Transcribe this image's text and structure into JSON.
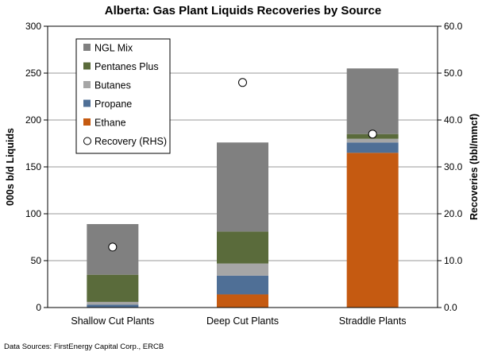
{
  "chart_data": {
    "type": "bar",
    "stacked": true,
    "title": "Alberta: Gas Plant Liquids Recoveries by Source",
    "ylabel": "000s b/d Liquids",
    "y2label": "Recoveries (bbl/mmcf)",
    "ylim": [
      0,
      300
    ],
    "y2lim": [
      0,
      60
    ],
    "yticks": [
      "0",
      "50",
      "100",
      "150",
      "200",
      "250",
      "300"
    ],
    "y2ticks": [
      "0.0",
      "10.0",
      "20.0",
      "30.0",
      "40.0",
      "50.0",
      "60.0"
    ],
    "grid": true,
    "legend_position": "top-left",
    "categories": [
      "Shallow Cut Plants",
      "Deep Cut Plants",
      "Straddle Plants"
    ],
    "series": [
      {
        "name": "Ethane",
        "color": "#c55a11",
        "values": [
          0,
          14,
          165
        ]
      },
      {
        "name": "Propane",
        "color": "#4f6f96",
        "values": [
          3,
          20,
          11
        ]
      },
      {
        "name": "Butanes",
        "color": "#a6a6a6",
        "values": [
          3,
          13,
          4
        ]
      },
      {
        "name": "Pentanes Plus",
        "color": "#5a6b3b",
        "values": [
          29,
          34,
          5
        ]
      },
      {
        "name": "NGL Mix",
        "color": "#808080",
        "values": [
          54,
          95,
          70
        ]
      }
    ],
    "recovery": {
      "name": "Recovery (RHS)",
      "values": [
        12.9,
        48.0,
        37.0
      ]
    },
    "legend_order": [
      "NGL Mix",
      "Pentanes Plus",
      "Butanes",
      "Propane",
      "Ethane",
      "Recovery (RHS)"
    ]
  },
  "source_note": "Data Sources: FirstEnergy Capital Corp., ERCB"
}
